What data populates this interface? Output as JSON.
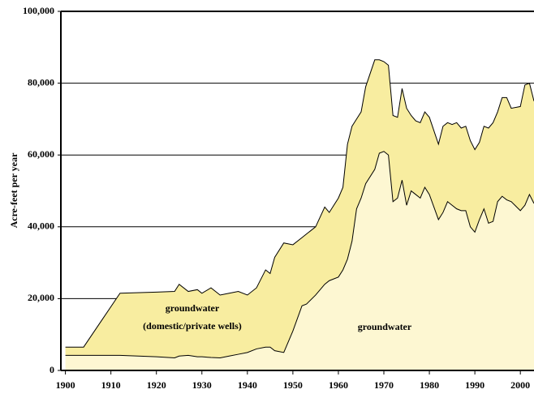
{
  "chart_data": {
    "type": "stacked_area",
    "y_label": "Acre-feet per year",
    "annotations": [
      "groundwater",
      "(domestic/private wells)",
      "groundwater"
    ],
    "x": [
      1900,
      1904,
      1912,
      1920,
      1924,
      1925,
      1927,
      1929,
      1930,
      1932,
      1934,
      1936,
      1938,
      1940,
      1942,
      1944,
      1945,
      1946,
      1948,
      1950,
      1952,
      1953,
      1955,
      1957,
      1958,
      1960,
      1961,
      1962,
      1963,
      1964,
      1965,
      1966,
      1968,
      1969,
      1970,
      1971,
      1972,
      1973,
      1974,
      1975,
      1976,
      1977,
      1978,
      1979,
      1980,
      1982,
      1983,
      1984,
      1985,
      1986,
      1987,
      1988,
      1989,
      1990,
      1991,
      1992,
      1993,
      1994,
      1995,
      1996,
      1997,
      1998,
      2000,
      2001,
      2002,
      2003
    ],
    "series": [
      {
        "name": "groundwater (municipal wells)",
        "color": "#fdf7d2",
        "values": [
          4200,
          4200,
          4200,
          3800,
          3500,
          4000,
          4200,
          3800,
          3800,
          3600,
          3500,
          4000,
          4500,
          5000,
          6000,
          6500,
          6500,
          5500,
          5000,
          11000,
          18000,
          18500,
          21000,
          24000,
          25000,
          26000,
          28000,
          31000,
          36000,
          45000,
          48000,
          52000,
          56000,
          60500,
          61000,
          60000,
          47000,
          48000,
          53000,
          46000,
          50000,
          49000,
          48000,
          51000,
          49000,
          42000,
          44000,
          47000,
          46000,
          45000,
          44500,
          44500,
          40000,
          38500,
          42000,
          45000,
          41000,
          41500,
          47000,
          48500,
          47500,
          47000,
          44500,
          46000,
          49000,
          46500
        ]
      },
      {
        "name": "groundwater (domestic/private wells)",
        "color": "#f8eda0",
        "values": [
          2300,
          2300,
          17300,
          18000,
          18500,
          20000,
          17800,
          18700,
          17700,
          19400,
          17500,
          17500,
          17500,
          16000,
          17000,
          21500,
          20500,
          26000,
          30500,
          24000,
          19000,
          19500,
          19000,
          21500,
          19000,
          22000,
          23000,
          32000,
          32000,
          25000,
          24000,
          27000,
          30500,
          26000,
          25000,
          25000,
          24000,
          22500,
          25500,
          27000,
          21000,
          20500,
          21000,
          21000,
          21500,
          21000,
          24000,
          22000,
          22500,
          24000,
          23000,
          23500,
          24000,
          23000,
          21500,
          23000,
          26500,
          27500,
          25000,
          27500,
          28500,
          26000,
          29000,
          33500,
          31000,
          28500
        ]
      }
    ],
    "xlim": [
      1899,
      2003
    ],
    "xticks": [
      1900,
      1910,
      1920,
      1930,
      1940,
      1950,
      1960,
      1970,
      1980,
      1990,
      2000
    ],
    "ylim": [
      0,
      100000
    ],
    "yticks": [
      0,
      {
        "value": 20000,
        "label": "20,000"
      },
      {
        "value": 40000,
        "label": "40,000"
      },
      {
        "value": 60000,
        "label": "60,000"
      },
      {
        "value": 80000,
        "label": "80,000"
      },
      {
        "value": 100000,
        "label": "100,000"
      }
    ],
    "grid": true,
    "line_color": "#000000"
  }
}
